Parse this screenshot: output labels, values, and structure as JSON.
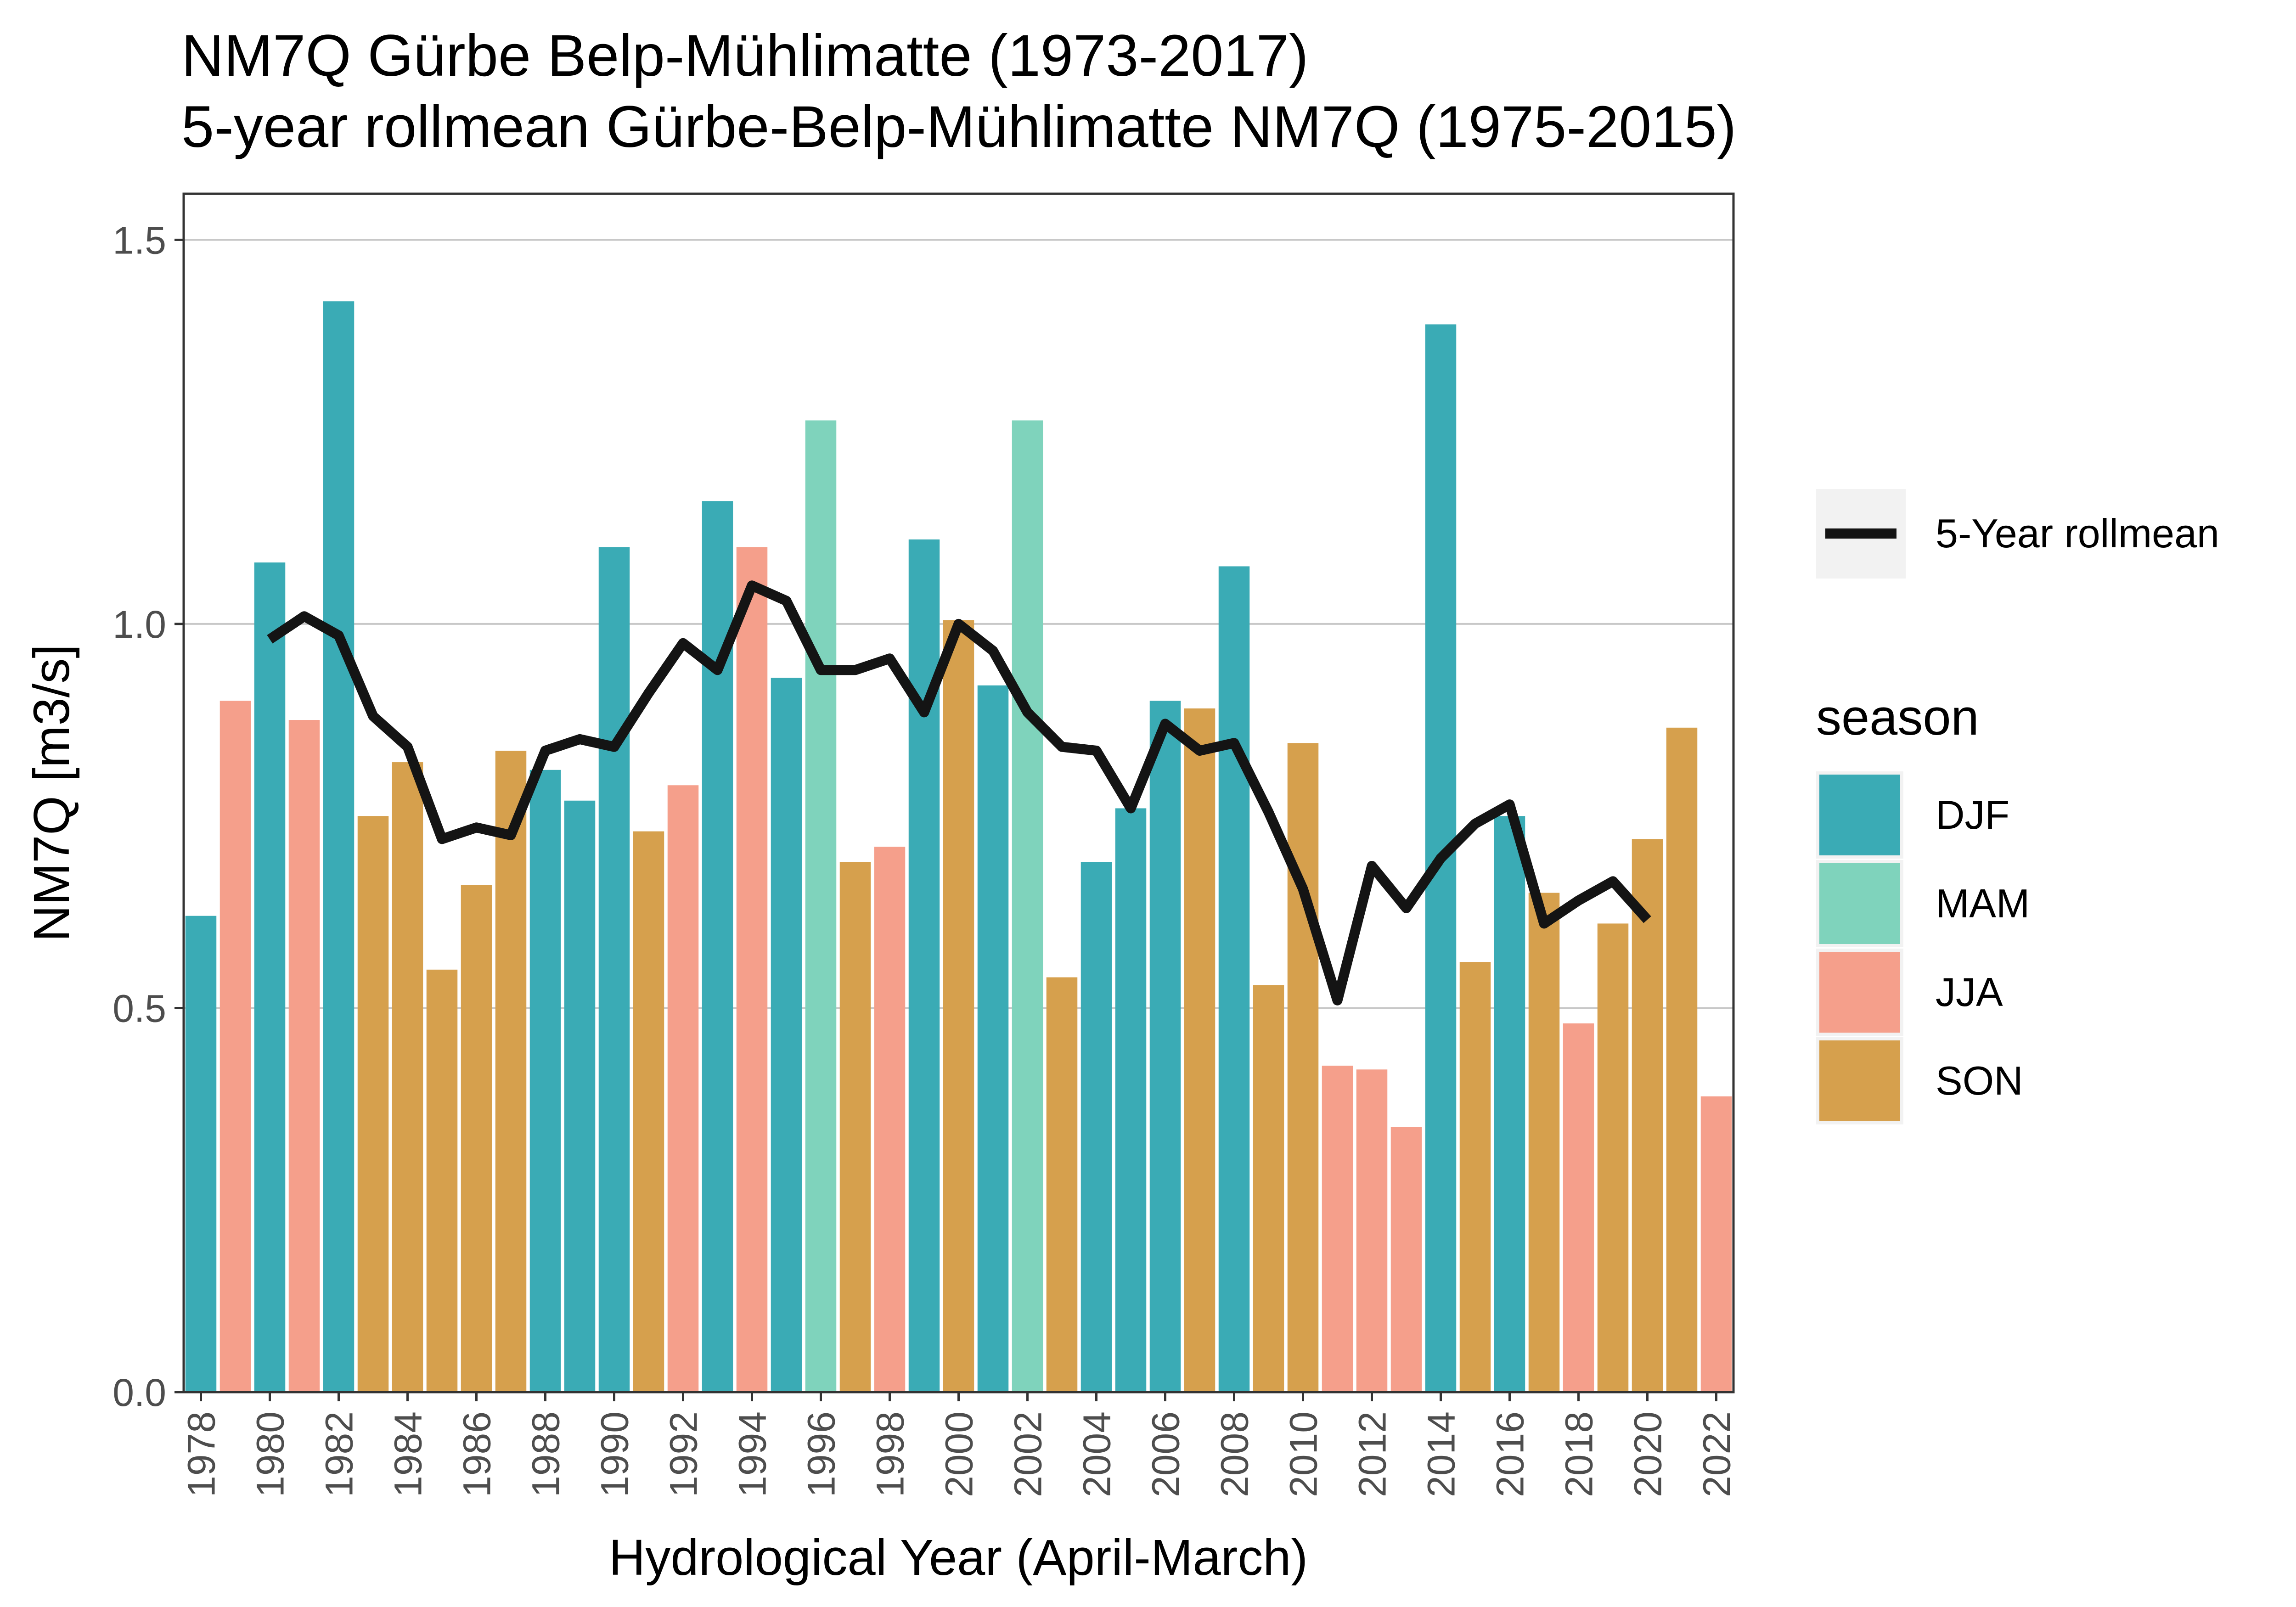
{
  "chart_data": {
    "type": "bar",
    "title": "NM7Q Gürbe Belp-Mühlimatte (1973-2017)",
    "subtitle": "5-year rollmean Gürbe-Belp-Mühlimatte NM7Q (1975-2015)",
    "xlabel": "Hydrological Year (April-March)",
    "ylabel": "NM7Q [m3/s]",
    "ylim": [
      0,
      1.56
    ],
    "xlim": [
      1977.5,
      2022.5
    ],
    "y_ticks": [
      0.0,
      0.5,
      1.0,
      1.5
    ],
    "y_tick_labels": [
      "0.0",
      "0.5",
      "1.0",
      "1.5"
    ],
    "x_ticks": [
      1978,
      1980,
      1982,
      1984,
      1986,
      1988,
      1990,
      1992,
      1994,
      1996,
      1998,
      2000,
      2002,
      2004,
      2006,
      2008,
      2010,
      2012,
      2014,
      2016,
      2018,
      2020,
      2022
    ],
    "grid": "horizontal major lines",
    "legend_position": "right",
    "season_colors": {
      "DJF": "#3AABB5",
      "MAM": "#7FD3BC",
      "JJA": "#F59F8B",
      "SON": "#D6A04D"
    },
    "line_color": "#141414",
    "series": [
      {
        "kind": "bar",
        "years": [
          1978,
          1979,
          1980,
          1981,
          1982,
          1983,
          1984,
          1985,
          1986,
          1987,
          1988,
          1989,
          1990,
          1991,
          1992,
          1993,
          1994,
          1995,
          1996,
          1997,
          1998,
          1999,
          2000,
          2001,
          2002,
          2003,
          2004,
          2005,
          2006,
          2007,
          2008,
          2009,
          2010,
          2011,
          2012,
          2013,
          2014,
          2015,
          2016,
          2017,
          2018,
          2019,
          2020,
          2021,
          2022
        ],
        "values": [
          0.62,
          0.9,
          1.08,
          0.875,
          1.42,
          0.75,
          0.82,
          0.55,
          0.66,
          0.835,
          0.81,
          0.77,
          1.1,
          0.73,
          0.79,
          1.16,
          1.1,
          0.93,
          1.265,
          0.69,
          0.71,
          1.11,
          1.005,
          0.92,
          1.265,
          0.54,
          0.69,
          0.76,
          0.9,
          0.89,
          1.075,
          0.53,
          0.845,
          0.425,
          0.42,
          0.345,
          1.39,
          0.56,
          0.75,
          0.65,
          0.48,
          0.61,
          0.72,
          0.865,
          0.385
        ],
        "seasons": [
          "DJF",
          "JJA",
          "DJF",
          "JJA",
          "DJF",
          "SON",
          "SON",
          "SON",
          "SON",
          "SON",
          "DJF",
          "DJF",
          "DJF",
          "SON",
          "JJA",
          "DJF",
          "JJA",
          "DJF",
          "MAM",
          "SON",
          "JJA",
          "DJF",
          "SON",
          "DJF",
          "MAM",
          "SON",
          "DJF",
          "DJF",
          "DJF",
          "SON",
          "DJF",
          "SON",
          "SON",
          "JJA",
          "JJA",
          "JJA",
          "DJF",
          "SON",
          "DJF",
          "SON",
          "JJA",
          "SON",
          "SON",
          "SON",
          "JJA"
        ]
      },
      {
        "kind": "line",
        "name": "5-Year rollmean",
        "years": [
          1980,
          1981,
          1982,
          1983,
          1984,
          1985,
          1986,
          1987,
          1988,
          1989,
          1990,
          1991,
          1992,
          1993,
          1994,
          1995,
          1996,
          1997,
          1998,
          1999,
          2000,
          2001,
          2002,
          2003,
          2004,
          2005,
          2006,
          2007,
          2008,
          2009,
          2010,
          2011,
          2012,
          2013,
          2014,
          2015,
          2016,
          2017,
          2018,
          2019,
          2020
        ],
        "values": [
          0.98,
          1.01,
          0.985,
          0.88,
          0.84,
          0.72,
          0.735,
          0.725,
          0.835,
          0.85,
          0.84,
          0.91,
          0.975,
          0.94,
          1.05,
          1.03,
          0.94,
          0.94,
          0.955,
          0.885,
          1.0,
          0.965,
          0.885,
          0.84,
          0.835,
          0.76,
          0.87,
          0.835,
          0.845,
          0.755,
          0.655,
          0.51,
          0.685,
          0.63,
          0.695,
          0.74,
          0.765,
          0.61,
          0.64,
          0.665,
          0.615
        ]
      }
    ],
    "legend": {
      "line_label": "5-Year rollmean",
      "season_title": "season",
      "season_labels": [
        "DJF",
        "MAM",
        "JJA",
        "SON"
      ]
    }
  }
}
